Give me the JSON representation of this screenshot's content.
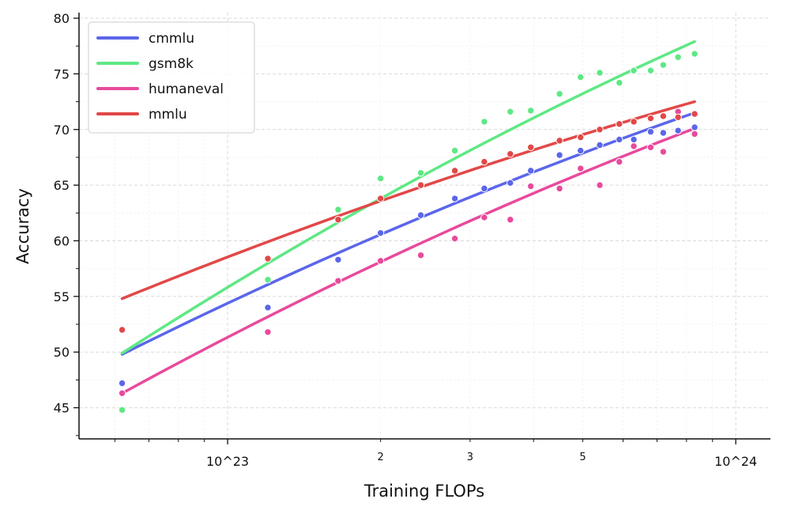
{
  "chart_data": {
    "type": "scatter",
    "xlabel": "Training FLOPs",
    "ylabel": "Accuracy",
    "x_scale": "log",
    "xlim": [
      5.1e+22,
      1.17e+24
    ],
    "ylim": [
      42.2,
      80.5
    ],
    "y_ticks": [
      45,
      50,
      55,
      60,
      65,
      70,
      75,
      80
    ],
    "x_major_ticks": [
      {
        "value": 1e+23,
        "label": "10^23"
      },
      {
        "value": 1e+24,
        "label": "10^24"
      }
    ],
    "x_minor_labeled_ticks": [
      {
        "value": 2e+23,
        "label": "2"
      },
      {
        "value": 3e+23,
        "label": "3"
      },
      {
        "value": 5e+23,
        "label": "5"
      }
    ],
    "grid": true,
    "legend_position": "top-left",
    "series": [
      {
        "name": "cmmlu",
        "color": "#5b66ea",
        "points": [
          [
            6.2e+22,
            47.2
          ],
          [
            1.2e+23,
            54.0
          ],
          [
            1.65e+23,
            58.3
          ],
          [
            2e+23,
            60.7
          ],
          [
            2.4e+23,
            62.3
          ],
          [
            2.8e+23,
            63.8
          ],
          [
            3.2e+23,
            64.7
          ],
          [
            3.6e+23,
            65.2
          ],
          [
            3.95e+23,
            66.3
          ],
          [
            4.5e+23,
            67.7
          ],
          [
            4.95e+23,
            68.1
          ],
          [
            5.4e+23,
            68.6
          ],
          [
            5.9e+23,
            69.1
          ],
          [
            6.3e+23,
            69.1
          ],
          [
            6.8e+23,
            69.8
          ],
          [
            7.2e+23,
            69.7
          ],
          [
            7.7e+23,
            69.9
          ],
          [
            8.3e+23,
            70.2
          ]
        ],
        "fit": [
          [
            6.2e+22,
            49.8
          ],
          [
            8.3e+23,
            71.5
          ]
        ]
      },
      {
        "name": "gsm8k",
        "color": "#5ee884",
        "points": [
          [
            6.2e+22,
            44.8
          ],
          [
            1.2e+23,
            56.5
          ],
          [
            1.65e+23,
            62.8
          ],
          [
            2e+23,
            65.6
          ],
          [
            2.4e+23,
            66.1
          ],
          [
            2.8e+23,
            68.1
          ],
          [
            3.2e+23,
            70.7
          ],
          [
            3.6e+23,
            71.6
          ],
          [
            3.95e+23,
            71.7
          ],
          [
            4.5e+23,
            73.2
          ],
          [
            4.95e+23,
            74.7
          ],
          [
            5.4e+23,
            75.1
          ],
          [
            5.9e+23,
            74.2
          ],
          [
            6.3e+23,
            75.3
          ],
          [
            6.8e+23,
            75.3
          ],
          [
            7.2e+23,
            75.8
          ],
          [
            7.7e+23,
            76.5
          ],
          [
            8.3e+23,
            76.8
          ]
        ],
        "fit": [
          [
            6.2e+22,
            49.9
          ],
          [
            8.3e+23,
            77.9
          ]
        ]
      },
      {
        "name": "humaneval",
        "color": "#e84a9c",
        "points": [
          [
            6.2e+22,
            46.3
          ],
          [
            1.2e+23,
            51.8
          ],
          [
            1.65e+23,
            56.4
          ],
          [
            2e+23,
            58.2
          ],
          [
            2.4e+23,
            58.7
          ],
          [
            2.8e+23,
            60.2
          ],
          [
            3.2e+23,
            62.1
          ],
          [
            3.6e+23,
            61.9
          ],
          [
            3.95e+23,
            64.9
          ],
          [
            4.5e+23,
            64.7
          ],
          [
            4.95e+23,
            66.5
          ],
          [
            5.4e+23,
            65.0
          ],
          [
            5.9e+23,
            67.1
          ],
          [
            6.3e+23,
            68.5
          ],
          [
            6.8e+23,
            68.4
          ],
          [
            7.2e+23,
            68.0
          ],
          [
            7.7e+23,
            71.6
          ],
          [
            8.3e+23,
            69.6
          ]
        ],
        "fit": [
          [
            6.2e+22,
            46.3
          ],
          [
            8.3e+23,
            70.1
          ]
        ]
      },
      {
        "name": "mmlu",
        "color": "#e24848",
        "points": [
          [
            6.2e+22,
            52.0
          ],
          [
            1.2e+23,
            58.4
          ],
          [
            1.65e+23,
            61.9
          ],
          [
            2e+23,
            63.8
          ],
          [
            2.4e+23,
            65.0
          ],
          [
            2.8e+23,
            66.3
          ],
          [
            3.2e+23,
            67.1
          ],
          [
            3.6e+23,
            67.8
          ],
          [
            3.95e+23,
            68.4
          ],
          [
            4.5e+23,
            69.0
          ],
          [
            4.95e+23,
            69.3
          ],
          [
            5.4e+23,
            70.0
          ],
          [
            5.9e+23,
            70.5
          ],
          [
            6.3e+23,
            70.7
          ],
          [
            6.8e+23,
            71.0
          ],
          [
            7.2e+23,
            71.2
          ],
          [
            7.7e+23,
            71.1
          ],
          [
            8.3e+23,
            71.4
          ]
        ],
        "fit": [
          [
            6.2e+22,
            54.8
          ],
          [
            8.3e+23,
            72.5
          ]
        ]
      }
    ]
  }
}
